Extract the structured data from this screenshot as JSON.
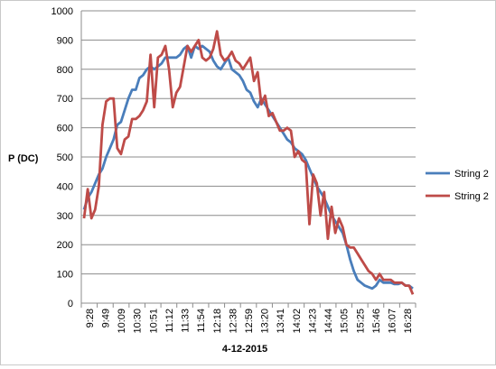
{
  "chart_data": {
    "type": "line",
    "title": "",
    "xlabel": "4-12-2015",
    "ylabel": "P (DC)",
    "ylim": [
      0,
      1000
    ],
    "yticks": [
      0,
      100,
      200,
      300,
      400,
      500,
      600,
      700,
      800,
      900,
      1000
    ],
    "x_ticks": [
      "9:28",
      "9:49",
      "10:09",
      "10:30",
      "10:51",
      "11:12",
      "11:33",
      "11:54",
      "12:18",
      "12:38",
      "12:59",
      "13:20",
      "13:41",
      "14:02",
      "14:23",
      "14:44",
      "15:05",
      "15:25",
      "15:46",
      "16:07",
      "16:28"
    ],
    "grid": "horizontal",
    "legend_position": "right",
    "series": [
      {
        "name": "String 2",
        "color": "#4a7ebb",
        "values": [
          320,
          360,
          380,
          410,
          440,
          460,
          500,
          530,
          560,
          610,
          620,
          660,
          700,
          730,
          730,
          770,
          780,
          800,
          810,
          800,
          810,
          820,
          840,
          840,
          840,
          840,
          850,
          870,
          880,
          840,
          880,
          870,
          880,
          870,
          860,
          830,
          810,
          800,
          820,
          840,
          800,
          790,
          780,
          760,
          730,
          720,
          690,
          670,
          700,
          680,
          660,
          640,
          620,
          600,
          580,
          560,
          550,
          530,
          520,
          510,
          490,
          460,
          430,
          400,
          380,
          360,
          330,
          300,
          280,
          260,
          240,
          200,
          150,
          110,
          80,
          70,
          60,
          55,
          50,
          60,
          80,
          70,
          70,
          70,
          65,
          65,
          70,
          60,
          60,
          50
        ]
      },
      {
        "name": "String 2",
        "color": "#be4b48",
        "values": [
          290,
          390,
          290,
          320,
          400,
          610,
          690,
          700,
          700,
          530,
          510,
          560,
          570,
          630,
          630,
          640,
          660,
          690,
          850,
          670,
          840,
          850,
          880,
          800,
          670,
          720,
          740,
          810,
          880,
          860,
          880,
          900,
          840,
          830,
          840,
          870,
          930,
          850,
          830,
          840,
          860,
          830,
          820,
          800,
          820,
          840,
          760,
          790,
          680,
          710,
          640,
          650,
          620,
          590,
          590,
          600,
          590,
          500,
          520,
          490,
          480,
          270,
          440,
          410,
          300,
          380,
          220,
          330,
          240,
          290,
          260,
          200,
          190,
          190,
          170,
          150,
          130,
          110,
          100,
          80,
          100,
          80,
          80,
          80,
          70,
          70,
          70,
          60,
          60,
          30
        ]
      }
    ]
  }
}
